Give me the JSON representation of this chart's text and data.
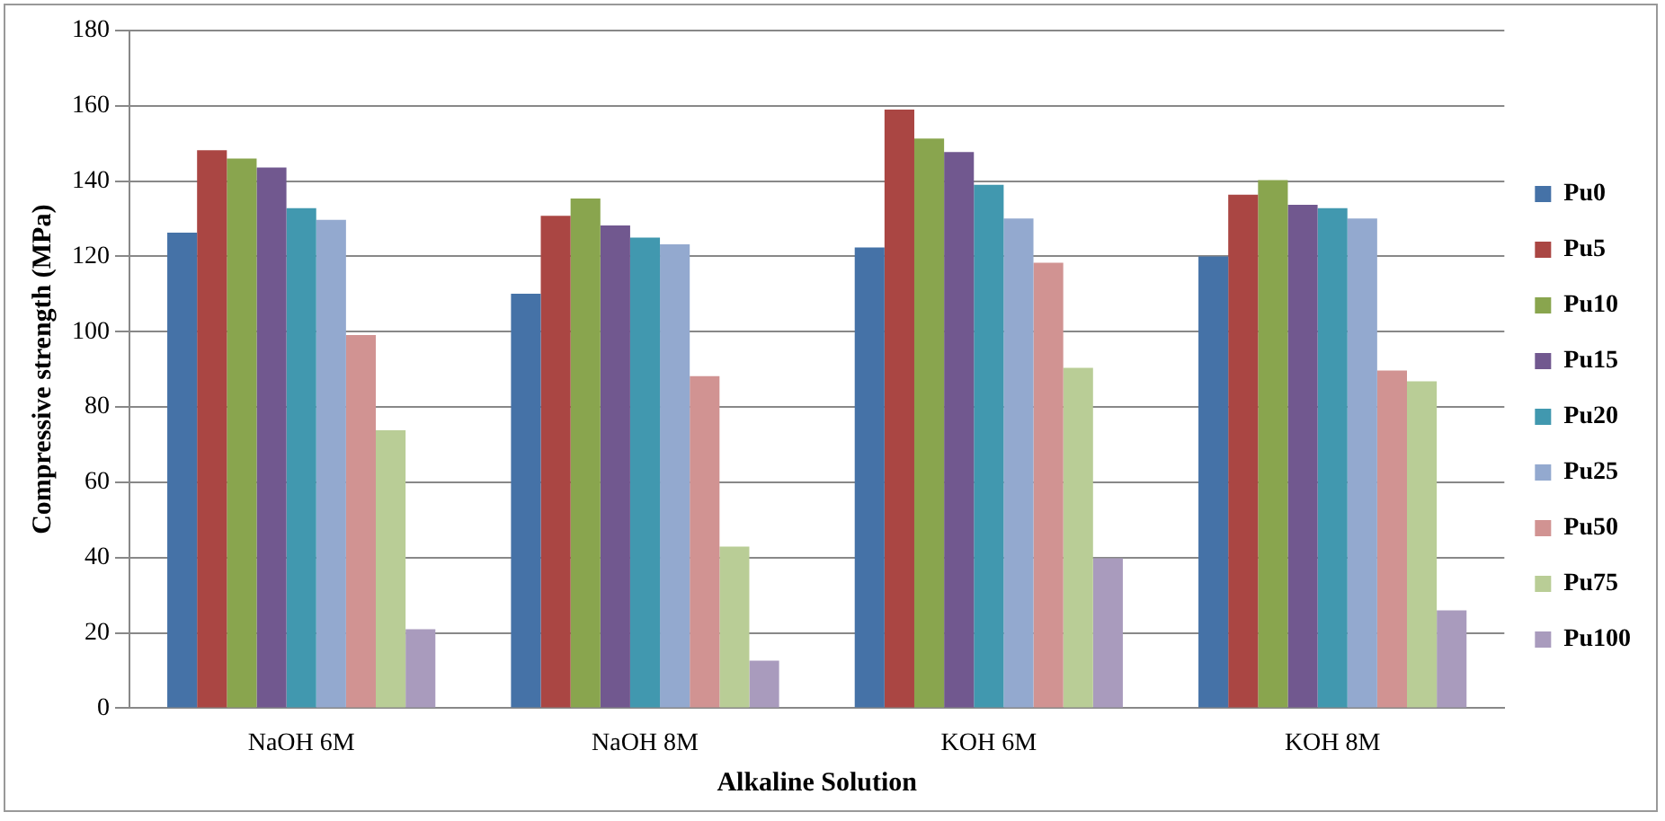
{
  "chart_data": {
    "type": "bar",
    "xlabel": "Alkaline Solution",
    "ylabel": "Compressive strength (MPa)",
    "categories": [
      "NaOH 6M",
      "NaOH 8M",
      "KOH 6M",
      "KOH 8M"
    ],
    "series": [
      {
        "name": "Pu0",
        "color": "#4572a7",
        "values": [
          126.3,
          110.1,
          122.4,
          120
        ]
      },
      {
        "name": "Pu5",
        "color": "#aa4643",
        "values": [
          148.2,
          130.8,
          159,
          136.4
        ]
      },
      {
        "name": "Pu10",
        "color": "#89a54e",
        "values": [
          146,
          135.4,
          151.3,
          140.3
        ]
      },
      {
        "name": "Pu15",
        "color": "#71588f",
        "values": [
          143.6,
          128.2,
          147.7,
          133.7
        ]
      },
      {
        "name": "Pu20",
        "color": "#4198af",
        "values": [
          132.8,
          125,
          139,
          132.8
        ]
      },
      {
        "name": "Pu25",
        "color": "#93a9cf",
        "values": [
          129.7,
          123.2,
          130.1,
          130.1
        ]
      },
      {
        "name": "Pu50",
        "color": "#d19392",
        "values": [
          99.1,
          88.2,
          118.3,
          89.7
        ]
      },
      {
        "name": "Pu75",
        "color": "#b9cd96",
        "values": [
          73.8,
          42.9,
          90.4,
          86.8
        ]
      },
      {
        "name": "Pu100",
        "color": "#a99bbd",
        "values": [
          21,
          12.6,
          39.8,
          26
        ]
      }
    ],
    "ylim": [
      0,
      180
    ],
    "yticks": [
      0,
      20,
      40,
      60,
      80,
      100,
      120,
      140,
      160,
      180
    ],
    "grid": "y",
    "legend": "right"
  }
}
